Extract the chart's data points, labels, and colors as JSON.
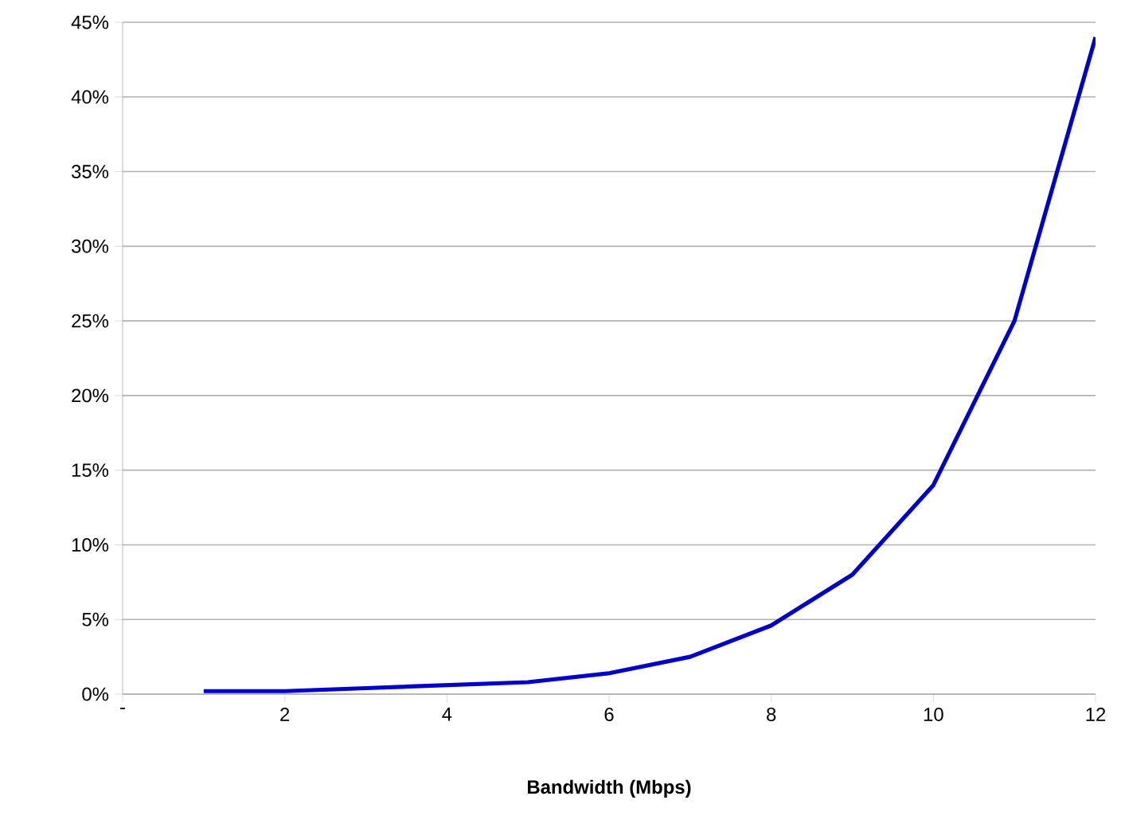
{
  "chart_data": {
    "type": "line",
    "xlabel": "Bandwidth (Mbps)",
    "x": [
      1,
      2,
      3,
      4,
      5,
      6,
      7,
      8,
      9,
      10,
      11,
      12
    ],
    "series": [
      {
        "color": "#0000cc",
        "values": [
          0.2,
          0.2,
          0.4,
          0.6,
          0.8,
          1.4,
          2.5,
          4.6,
          8,
          14,
          25,
          44
        ]
      }
    ],
    "xlim": [
      0,
      12
    ],
    "xticks": [
      {
        "value": 0,
        "label": "-"
      },
      2,
      4,
      6,
      8,
      10,
      12
    ],
    "ylim": [
      0,
      45
    ],
    "yticks": [
      {
        "value": 0,
        "label": "0%"
      },
      {
        "value": 5,
        "label": "5%"
      },
      {
        "value": 10,
        "label": "10%"
      },
      {
        "value": 15,
        "label": "15%"
      },
      {
        "value": 20,
        "label": "20%"
      },
      {
        "value": 25,
        "label": "25%"
      },
      {
        "value": 30,
        "label": "30%"
      },
      {
        "value": 35,
        "label": "35%"
      },
      {
        "value": 40,
        "label": "40%"
      },
      {
        "value": 45,
        "label": "45%"
      }
    ],
    "grid": "y",
    "marker": "none",
    "line_style": "solid"
  }
}
